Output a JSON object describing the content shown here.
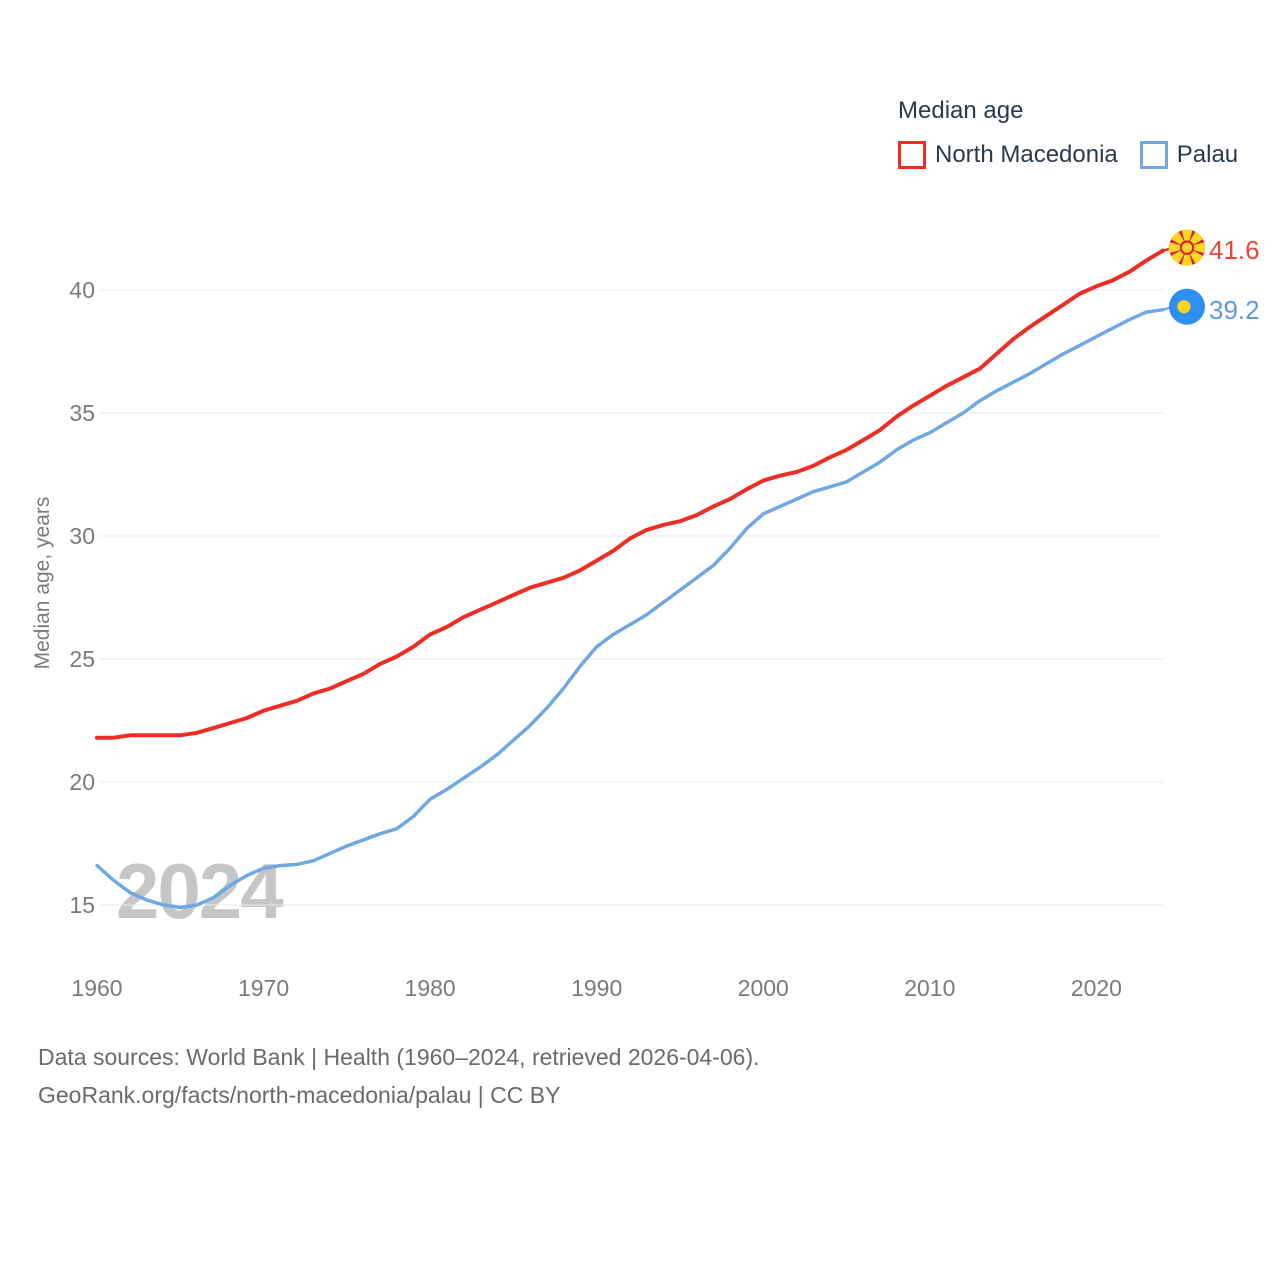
{
  "watermark": "2024",
  "footer": {
    "line1": "Data sources: World Bank | Health (1960–2024, retrieved 2026-04-06).",
    "line2": "GeoRank.org/facts/north-macedonia/palau | CC BY"
  },
  "chart_data": {
    "type": "line",
    "title": "Median age",
    "ylabel": "Median age, years",
    "x_start": 1960,
    "x_end": 2024,
    "xlim": [
      1960,
      2024
    ],
    "ylim": [
      13.5,
      43
    ],
    "yticks": [
      40,
      35,
      30,
      25,
      20,
      15
    ],
    "xticks": [
      1960,
      1970,
      1980,
      1990,
      2000,
      2010,
      2020
    ],
    "grid": "horizontal-only",
    "legend_position": "top-right",
    "tick_color": "#7b7b7b",
    "grid_color": "#e9e9e9",
    "series": [
      {
        "name": "North Macedonia",
        "color": "#ee2e24",
        "label_color": "#ef4438",
        "end_label": "41.6",
        "flag_icon": "north-macedonia-flag-icon",
        "line_width": 4,
        "values": [
          21.8,
          21.8,
          21.9,
          21.9,
          21.9,
          21.9,
          22.0,
          22.2,
          22.4,
          22.6,
          22.9,
          23.1,
          23.3,
          23.6,
          23.8,
          24.1,
          24.4,
          24.8,
          25.1,
          25.5,
          26.0,
          26.3,
          26.7,
          27.0,
          27.3,
          27.6,
          27.9,
          28.1,
          28.3,
          28.6,
          29.0,
          29.4,
          29.9,
          30.25,
          30.45,
          30.6,
          30.85,
          31.2,
          31.5,
          31.9,
          32.25,
          32.45,
          32.6,
          32.85,
          33.2,
          33.5,
          33.9,
          34.3,
          34.85,
          35.3,
          35.7,
          36.1,
          36.45,
          36.8,
          37.4,
          38.0,
          38.5,
          38.95,
          39.4,
          39.85,
          40.15,
          40.4,
          40.75,
          41.2,
          41.6
        ]
      },
      {
        "name": "Palau",
        "color": "#6fa8e3",
        "label_color": "#5b9ae8",
        "end_label": "39.2",
        "flag_icon": "palau-flag-icon",
        "line_width": 3.5,
        "values": [
          16.6,
          16.0,
          15.5,
          15.2,
          15.0,
          14.9,
          15.0,
          15.3,
          15.8,
          16.2,
          16.5,
          16.6,
          16.65,
          16.8,
          17.1,
          17.4,
          17.65,
          17.9,
          18.1,
          18.6,
          19.3,
          19.7,
          20.15,
          20.6,
          21.1,
          21.7,
          22.3,
          23.0,
          23.8,
          24.7,
          25.5,
          26.0,
          26.4,
          26.8,
          27.3,
          27.8,
          28.3,
          28.8,
          29.5,
          30.3,
          30.9,
          31.2,
          31.5,
          31.8,
          32.0,
          32.2,
          32.6,
          33.0,
          33.5,
          33.9,
          34.2,
          34.6,
          35.0,
          35.5,
          35.9,
          36.25,
          36.6,
          37.0,
          37.4,
          37.75,
          38.1,
          38.45,
          38.8,
          39.1,
          39.2
        ]
      }
    ]
  }
}
